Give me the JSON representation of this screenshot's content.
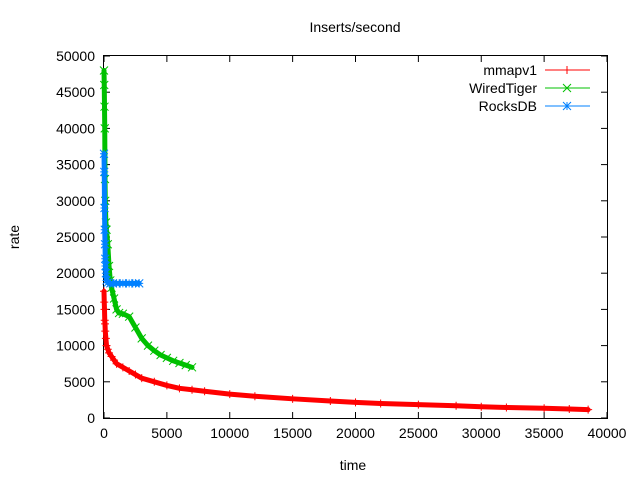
{
  "chart_data": {
    "type": "line",
    "title": "Inserts/second",
    "xlabel": "time",
    "ylabel": "rate",
    "xlim": [
      0,
      40000
    ],
    "ylim": [
      0,
      50000
    ],
    "xticks": [
      0,
      5000,
      10000,
      15000,
      20000,
      25000,
      30000,
      35000,
      40000
    ],
    "xtick_labels": [
      "0",
      "5000",
      "10000",
      "15000",
      "20000",
      "25000",
      "30000",
      "35000",
      "40000"
    ],
    "yticks": [
      0,
      5000,
      10000,
      15000,
      20000,
      25000,
      30000,
      35000,
      40000,
      45000,
      50000
    ],
    "ytick_labels": [
      "0",
      "5000",
      "10000",
      "15000",
      "20000",
      "25000",
      "30000",
      "35000",
      "40000",
      "45000",
      "50000"
    ],
    "grid": false,
    "legend_position": "top-right",
    "series": [
      {
        "name": "mmapv1",
        "color": "#ff0000",
        "marker": "plus",
        "x": [
          0,
          20,
          40,
          60,
          80,
          100,
          150,
          200,
          300,
          400,
          600,
          800,
          1000,
          1500,
          2000,
          2500,
          3000,
          4000,
          5000,
          6000,
          7000,
          8000,
          10000,
          12000,
          15000,
          18000,
          20000,
          22000,
          25000,
          28000,
          30000,
          32000,
          35000,
          37000,
          38500
        ],
        "y": [
          17500,
          16000,
          15000,
          13500,
          13000,
          12000,
          11000,
          10000,
          9500,
          9000,
          8500,
          8000,
          7500,
          7000,
          6500,
          6000,
          5500,
          5000,
          4500,
          4100,
          3900,
          3700,
          3300,
          3000,
          2650,
          2350,
          2150,
          2000,
          1850,
          1700,
          1550,
          1450,
          1350,
          1250,
          1150
        ]
      },
      {
        "name": "WiredTiger",
        "color": "#00c000",
        "marker": "cross",
        "x": [
          0,
          20,
          40,
          60,
          80,
          100,
          150,
          200,
          300,
          400,
          500,
          600,
          800,
          1000,
          1200,
          1500,
          2000,
          2500,
          3000,
          3500,
          4000,
          4500,
          5000,
          5500,
          6000,
          6500,
          7000
        ],
        "y": [
          48000,
          46000,
          43000,
          40000,
          33000,
          30000,
          27000,
          26000,
          24000,
          21000,
          19000,
          18000,
          16500,
          15000,
          14500,
          14400,
          14000,
          12500,
          11000,
          10000,
          9300,
          8700,
          8300,
          7900,
          7600,
          7300,
          7000
        ]
      },
      {
        "name": "RocksDB",
        "color": "#0080ff",
        "marker": "star",
        "x": [
          0,
          20,
          40,
          60,
          80,
          100,
          120,
          150,
          200,
          300,
          500,
          700,
          1000,
          1500,
          2000,
          2500,
          2800
        ],
        "y": [
          36500,
          34000,
          29000,
          26000,
          24000,
          22000,
          21000,
          20000,
          19000,
          18700,
          18600,
          18600,
          18600,
          18600,
          18600,
          18600,
          18600
        ]
      }
    ]
  }
}
